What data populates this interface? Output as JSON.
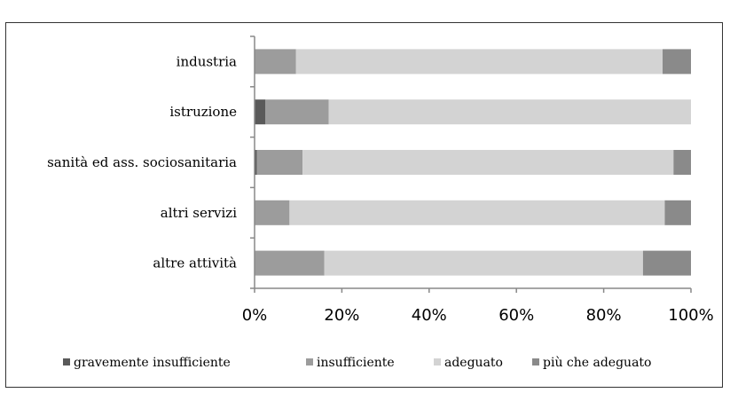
{
  "caption_fragment": "",
  "chart_data": {
    "type": "bar",
    "orientation": "horizontal",
    "stacked": "percent",
    "title": "",
    "xlabel": "",
    "ylabel": "",
    "xlim": [
      0,
      100
    ],
    "grid": false,
    "legend_position": "bottom",
    "categories": [
      "industria",
      "istruzione",
      "sanità ed ass. sociosanitaria",
      "altri servizi",
      "altre attività"
    ],
    "x_ticks": [
      "0%",
      "20%",
      "40%",
      "60%",
      "80%",
      "100%"
    ],
    "series": [
      {
        "name": "gravemente insufficiente",
        "color": "#5a5a5a",
        "values": [
          0,
          2.5,
          0.5,
          0,
          0
        ]
      },
      {
        "name": "insufficiente",
        "color": "#9c9c9c",
        "values": [
          9.5,
          14.5,
          10.5,
          8,
          16
        ]
      },
      {
        "name": "adeguato",
        "color": "#d3d3d3",
        "values": [
          84,
          83,
          85,
          86,
          73
        ]
      },
      {
        "name": "più che adeguato",
        "color": "#8a8a8a",
        "values": [
          6.5,
          0,
          4,
          6,
          11
        ]
      }
    ]
  }
}
